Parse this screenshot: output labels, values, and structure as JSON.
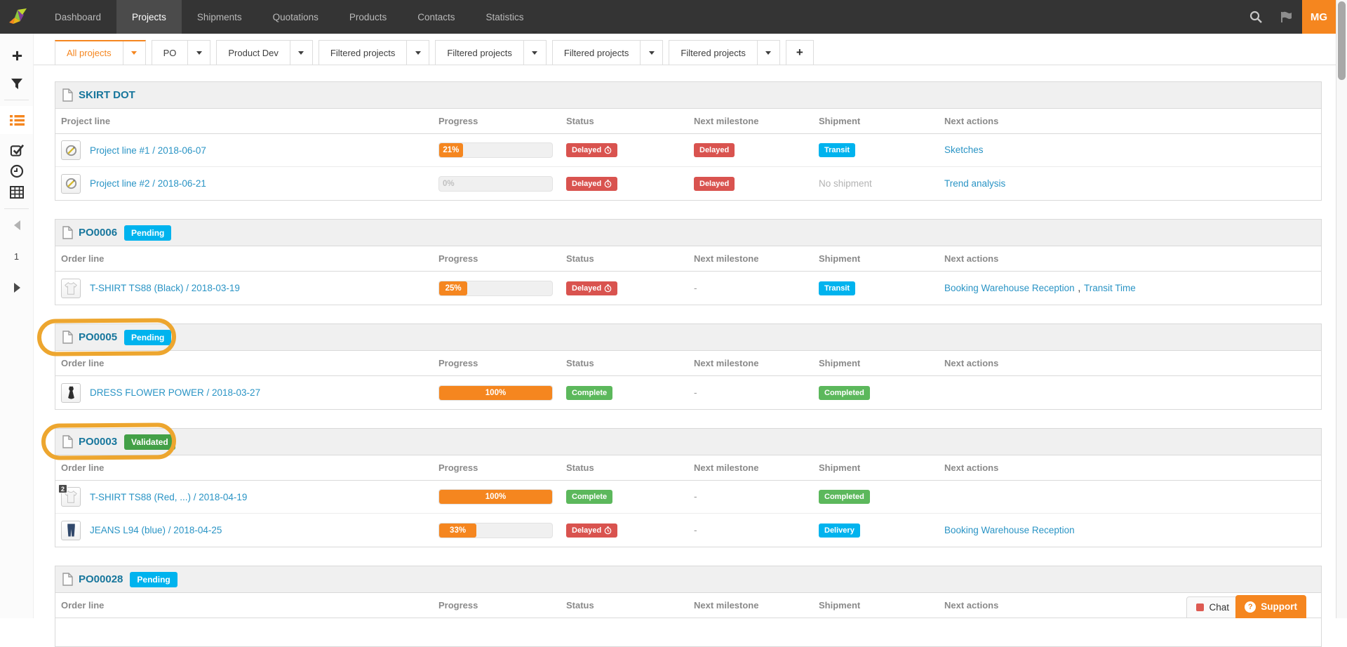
{
  "navbar": {
    "items": [
      {
        "label": "Dashboard"
      },
      {
        "label": "Projects",
        "active": true
      },
      {
        "label": "Shipments"
      },
      {
        "label": "Quotations"
      },
      {
        "label": "Products"
      },
      {
        "label": "Contacts"
      },
      {
        "label": "Statistics"
      }
    ],
    "icons": [
      "search-icon",
      "flag-icon"
    ],
    "user_initials": "MG"
  },
  "sidebar": {
    "icons": [
      "plus-icon",
      "filter-icon",
      "list-icon",
      "checkbox-icon",
      "clock-icon",
      "grid-icon"
    ],
    "active_icon": "list-icon",
    "page_number": "1"
  },
  "tabs": {
    "items": [
      "All projects",
      "PO",
      "Product Dev",
      "Filtered projects",
      "Filtered projects",
      "Filtered projects",
      "Filtered projects"
    ],
    "active_index": 0,
    "add_label": "+"
  },
  "table_headers": {
    "progress": "Progress",
    "status": "Status",
    "milestone": "Next milestone",
    "shipment": "Shipment",
    "actions": "Next actions"
  },
  "sections": [
    {
      "title": "SKIRT DOT",
      "line_header": "Project line",
      "rows": [
        {
          "icon": "sketch-placeholder",
          "name": "Project line #1 / 2018-06-07",
          "progress": {
            "value": 21,
            "label": "21%"
          },
          "status": {
            "label": "Delayed",
            "variant": "red",
            "clock": true
          },
          "milestone": {
            "label": "Delayed",
            "variant": "red"
          },
          "shipment": {
            "label": "Transit",
            "variant": "cyan"
          },
          "actions": [
            "Sketches"
          ]
        },
        {
          "icon": "sketch-placeholder",
          "name": "Project line #2 / 2018-06-21",
          "progress": {
            "value": 0,
            "label": "0%"
          },
          "status": {
            "label": "Delayed",
            "variant": "red",
            "clock": true
          },
          "milestone": {
            "label": "Delayed",
            "variant": "red"
          },
          "shipment_text": "No shipment",
          "actions": [
            "Trend analysis"
          ]
        }
      ]
    },
    {
      "title": "PO0006",
      "status_badge": {
        "label": "Pending",
        "variant": "cyan"
      },
      "line_header": "Order line",
      "rows": [
        {
          "icon": "tshirt",
          "name": "T-SHIRT TS88 (Black) / 2018-03-19",
          "progress": {
            "value": 25,
            "label": "25%"
          },
          "status": {
            "label": "Delayed",
            "variant": "red",
            "clock": true
          },
          "milestone_text": "-",
          "shipment": {
            "label": "Transit",
            "variant": "cyan"
          },
          "actions": [
            "Booking Warehouse Reception",
            "Transit Time"
          ],
          "actions_separator": " , "
        }
      ]
    },
    {
      "title": "PO0005",
      "status_badge": {
        "label": "Pending",
        "variant": "cyan"
      },
      "annotated": true,
      "line_header": "Order line",
      "rows": [
        {
          "icon": "dress",
          "name": "DRESS FLOWER POWER / 2018-03-27",
          "progress": {
            "value": 100,
            "label": "100%"
          },
          "status": {
            "label": "Complete",
            "variant": "green"
          },
          "milestone_text": "-",
          "shipment": {
            "label": "Completed",
            "variant": "green"
          },
          "actions": []
        }
      ]
    },
    {
      "title": "PO0003",
      "status_badge": {
        "label": "Validated",
        "variant": "green-dark"
      },
      "annotated": true,
      "line_header": "Order line",
      "rows": [
        {
          "icon": "tshirt",
          "count": "2",
          "name": "T-SHIRT TS88 (Red, ...) / 2018-04-19",
          "progress": {
            "value": 100,
            "label": "100%"
          },
          "status": {
            "label": "Complete",
            "variant": "green"
          },
          "milestone_text": "-",
          "shipment": {
            "label": "Completed",
            "variant": "green"
          },
          "actions": []
        },
        {
          "icon": "jeans",
          "name": "JEANS L94 (blue) / 2018-04-25",
          "progress": {
            "value": 33,
            "label": "33%"
          },
          "status": {
            "label": "Delayed",
            "variant": "red",
            "clock": true
          },
          "milestone_text": "-",
          "shipment": {
            "label": "Delivery",
            "variant": "cyan"
          },
          "actions": [
            "Booking Warehouse Reception"
          ]
        }
      ]
    },
    {
      "title": "PO00028",
      "status_badge": {
        "label": "Pending",
        "variant": "cyan"
      },
      "line_header": "Order line",
      "rows": []
    }
  ],
  "footer": {
    "chat_label": "Chat",
    "support_label": "Support"
  },
  "colors": {
    "accent_orange": "#f5861f",
    "badge_red": "#d9534f",
    "badge_cyan": "#00b3ee",
    "badge_green": "#5cb85c",
    "badge_green_dark": "#43a047",
    "link_blue": "#2a94c5",
    "title_teal": "#17769c",
    "annotation_orange": "#eda62f",
    "navbar_bg": "#343434"
  }
}
